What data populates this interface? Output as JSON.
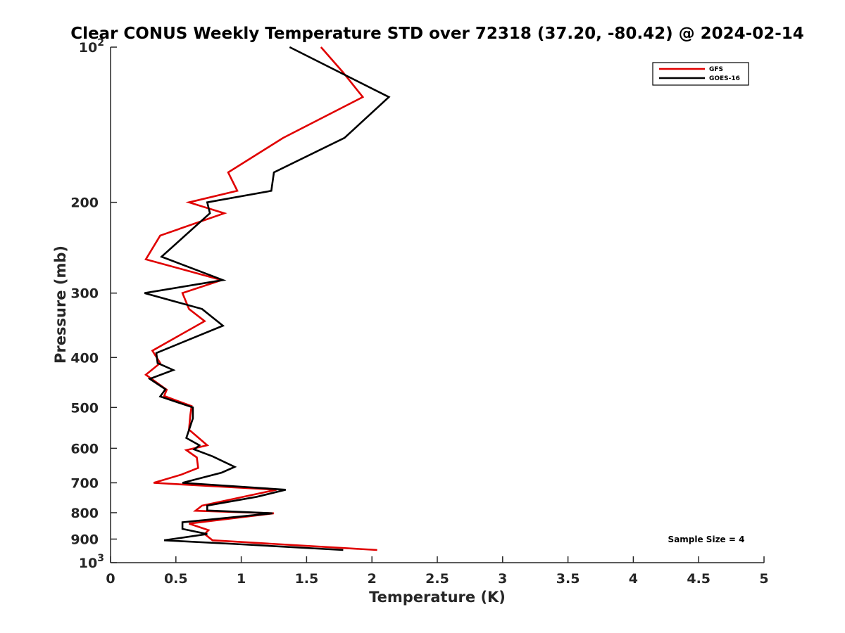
{
  "chart_data": {
    "type": "line",
    "title": "Clear CONUS Weekly Temperature STD over 72318 (37.20, -80.42) @ 2024-02-14",
    "xlabel": "Temperature (K)",
    "ylabel": "Pressure (mb)",
    "xlim": [
      0,
      5
    ],
    "ylim": [
      100,
      1000
    ],
    "y_scale": "log",
    "y_reversed": true,
    "x_ticks": [
      "0",
      "0.5",
      "1",
      "1.5",
      "2",
      "2.5",
      "3",
      "3.5",
      "4",
      "4.5",
      "5"
    ],
    "y_ticks": [
      {
        "value": 100,
        "base": "10",
        "exp": "2"
      },
      {
        "value": 200,
        "label": "200"
      },
      {
        "value": 300,
        "label": "300"
      },
      {
        "value": 400,
        "label": "400"
      },
      {
        "value": 500,
        "label": "500"
      },
      {
        "value": 600,
        "label": "600"
      },
      {
        "value": 700,
        "label": "700"
      },
      {
        "value": 800,
        "label": "800"
      },
      {
        "value": 900,
        "label": "900"
      },
      {
        "value": 1000,
        "base": "10",
        "exp": "3"
      }
    ],
    "legend_location": "top-right",
    "grid": false,
    "annotation": "Sample Size = 4",
    "series": [
      {
        "name": "GFS",
        "color": "#e00000",
        "points": [
          [
            1.61,
            100
          ],
          [
            1.78,
            112
          ],
          [
            1.93,
            125
          ],
          [
            1.32,
            150
          ],
          [
            0.9,
            175
          ],
          [
            0.97,
            190
          ],
          [
            0.6,
            200
          ],
          [
            0.87,
            210
          ],
          [
            0.38,
            232
          ],
          [
            0.27,
            258
          ],
          [
            0.85,
            283
          ],
          [
            0.55,
            300
          ],
          [
            0.6,
            322
          ],
          [
            0.72,
            340
          ],
          [
            0.32,
            388
          ],
          [
            0.38,
            410
          ],
          [
            0.27,
            432
          ],
          [
            0.43,
            462
          ],
          [
            0.41,
            475
          ],
          [
            0.62,
            497
          ],
          [
            0.61,
            518
          ],
          [
            0.6,
            552
          ],
          [
            0.74,
            592
          ],
          [
            0.58,
            605
          ],
          [
            0.66,
            625
          ],
          [
            0.67,
            655
          ],
          [
            0.54,
            675
          ],
          [
            0.33,
            700
          ],
          [
            1.27,
            722
          ],
          [
            0.7,
            775
          ],
          [
            0.65,
            793
          ],
          [
            1.25,
            802
          ],
          [
            0.6,
            840
          ],
          [
            0.75,
            865
          ],
          [
            0.72,
            880
          ],
          [
            0.78,
            905
          ],
          [
            2.04,
            945
          ]
        ]
      },
      {
        "name": "GOES-16",
        "color": "#000000",
        "points": [
          [
            1.37,
            100
          ],
          [
            2.13,
            125
          ],
          [
            1.79,
            150
          ],
          [
            1.25,
            175
          ],
          [
            1.23,
            190
          ],
          [
            0.74,
            200
          ],
          [
            0.76,
            210
          ],
          [
            0.39,
            255
          ],
          [
            0.86,
            283
          ],
          [
            0.26,
            300
          ],
          [
            0.7,
            322
          ],
          [
            0.86,
            347
          ],
          [
            0.35,
            392
          ],
          [
            0.36,
            410
          ],
          [
            0.48,
            423
          ],
          [
            0.3,
            440
          ],
          [
            0.42,
            461
          ],
          [
            0.38,
            476
          ],
          [
            0.63,
            500
          ],
          [
            0.63,
            525
          ],
          [
            0.58,
            573
          ],
          [
            0.68,
            592
          ],
          [
            0.64,
            603
          ],
          [
            0.78,
            622
          ],
          [
            0.95,
            652
          ],
          [
            0.85,
            669
          ],
          [
            0.55,
            700
          ],
          [
            1.34,
            722
          ],
          [
            1.12,
            745
          ],
          [
            0.74,
            775
          ],
          [
            0.74,
            792
          ],
          [
            1.24,
            802
          ],
          [
            0.55,
            835
          ],
          [
            0.55,
            860
          ],
          [
            0.74,
            880
          ],
          [
            0.41,
            905
          ],
          [
            0.96,
            920
          ],
          [
            1.78,
            945
          ]
        ]
      }
    ]
  }
}
